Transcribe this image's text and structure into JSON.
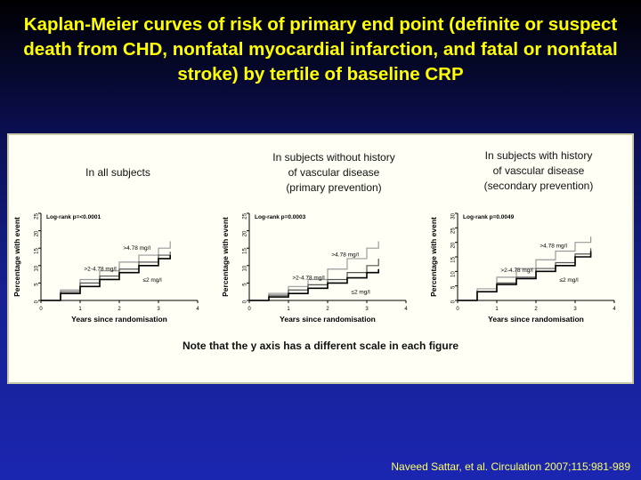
{
  "title": "Kaplan-Meier curves of risk of primary end point (definite or suspect death from CHD, nonfatal myocardial infarction, and fatal or nonfatal stroke) by tertile of baseline CRP",
  "note": "Note that the y axis has a different scale in each figure",
  "citation": "Naveed Sattar, et al. Circulation 2007;115:981-989",
  "colors": {
    "title": "#ffff00",
    "citation": "#ffff66",
    "background": "#16208f"
  },
  "chart_data": [
    {
      "type": "line",
      "caption": "In all subjects",
      "logrank": "Log-rank p=<0.0001",
      "xlabel": "Years since randomisation",
      "ylabel": "Percentage with event",
      "xlim": [
        0,
        4
      ],
      "ylim": [
        0,
        25
      ],
      "xticks": [
        0,
        1,
        2,
        3,
        4
      ],
      "yticks": [
        0,
        5,
        10,
        15,
        20,
        25
      ],
      "series": [
        {
          "name": ">4.78 mg/l",
          "color": "#9a9a9a",
          "x": [
            0,
            0.5,
            1,
            1.5,
            2,
            2.5,
            3,
            3.3
          ],
          "y": [
            0,
            3,
            6,
            8.5,
            11,
            13,
            15,
            17
          ]
        },
        {
          "name": ">2-4.78 mg/l",
          "color": "#555555",
          "x": [
            0,
            0.5,
            1,
            1.5,
            2,
            2.5,
            3,
            3.3
          ],
          "y": [
            0,
            2.5,
            5,
            7,
            9,
            11,
            13,
            14
          ]
        },
        {
          "name": "≤2 mg/l",
          "color": "#000000",
          "x": [
            0,
            0.5,
            1,
            1.5,
            2,
            2.5,
            3,
            3.3
          ],
          "y": [
            0,
            2,
            4,
            6,
            8,
            10,
            12,
            13
          ]
        }
      ]
    },
    {
      "type": "line",
      "caption": "In subjects without history\nof vascular disease\n(primary prevention)",
      "logrank": "Log-rank p=0.0003",
      "xlabel": "Years since randomisation",
      "ylabel": "Percentage with event",
      "xlim": [
        0,
        4
      ],
      "ylim": [
        0,
        25
      ],
      "xticks": [
        0,
        1,
        2,
        3,
        4
      ],
      "yticks": [
        0,
        5,
        10,
        15,
        20,
        25
      ],
      "series": [
        {
          "name": ">4.78 mg/l",
          "color": "#9a9a9a",
          "x": [
            0,
            0.5,
            1,
            1.5,
            2,
            2.5,
            3,
            3.3
          ],
          "y": [
            0,
            2,
            4,
            6,
            9,
            12,
            15,
            17
          ]
        },
        {
          "name": ">2-4.78 mg/l",
          "color": "#555555",
          "x": [
            0,
            0.5,
            1,
            1.5,
            2,
            2.5,
            3,
            3.3
          ],
          "y": [
            0,
            1.5,
            3,
            4.5,
            6,
            8,
            10,
            12
          ]
        },
        {
          "name": "≤2 mg/l",
          "color": "#000000",
          "x": [
            0,
            0.5,
            1,
            1.5,
            2,
            2.5,
            3,
            3.3
          ],
          "y": [
            0,
            1,
            2,
            3.5,
            5,
            6.5,
            8,
            9
          ]
        }
      ]
    },
    {
      "type": "line",
      "caption": "In  subjects with history\nof vascular disease\n(secondary prevention)",
      "logrank": "Log-rank p=0.0049",
      "xlabel": "Years since randomisation",
      "ylabel": "Percentage with event",
      "xlim": [
        0,
        4
      ],
      "ylim": [
        0,
        30
      ],
      "xticks": [
        0,
        1,
        2,
        3,
        4
      ],
      "yticks": [
        0,
        5,
        10,
        15,
        20,
        25,
        30
      ],
      "series": [
        {
          "name": ">4.78 mg/l",
          "color": "#9a9a9a",
          "x": [
            0,
            0.5,
            1,
            1.5,
            2,
            2.5,
            3,
            3.4
          ],
          "y": [
            0,
            4,
            8,
            11,
            14,
            17,
            20,
            22
          ]
        },
        {
          "name": ">2-4.78 mg/l",
          "color": "#555555",
          "x": [
            0,
            0.5,
            1,
            1.5,
            2,
            2.5,
            3,
            3.4
          ],
          "y": [
            0,
            3,
            6,
            8,
            11,
            13,
            16,
            18
          ]
        },
        {
          "name": "≤2 mg/l",
          "color": "#000000",
          "x": [
            0,
            0.5,
            1,
            1.5,
            2,
            2.5,
            3,
            3.4
          ],
          "y": [
            0,
            3,
            5.5,
            7.5,
            10,
            12,
            15,
            17
          ]
        }
      ]
    }
  ]
}
